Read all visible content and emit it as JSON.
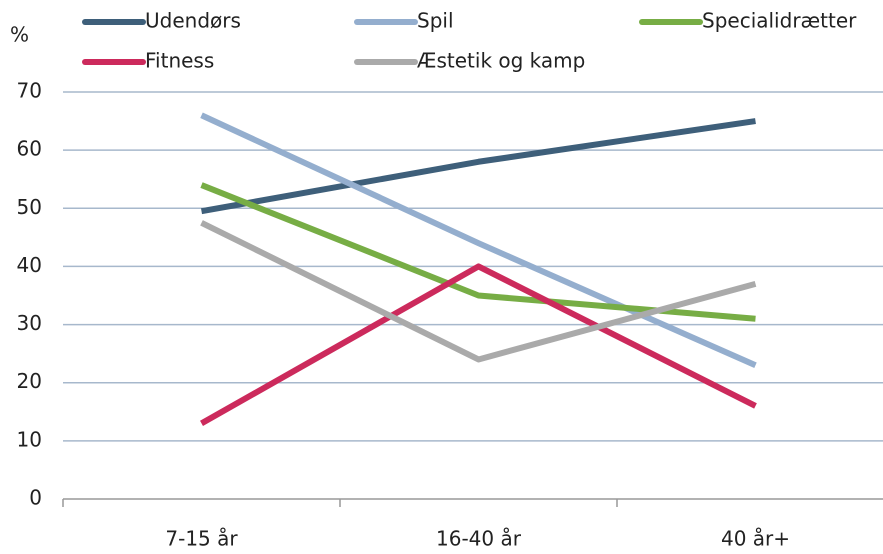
{
  "chart_data": {
    "type": "line",
    "y_label": "%",
    "categories": [
      "7-15 år",
      "16-40 år",
      "40 år+"
    ],
    "series": [
      {
        "name": "Udendørs",
        "color": "#3e5f7a",
        "values": [
          49.5,
          58,
          65
        ]
      },
      {
        "name": "Spil",
        "color": "#94aece",
        "values": [
          66,
          44,
          23
        ]
      },
      {
        "name": "Specialidrætter",
        "color": "#77ad45",
        "values": [
          54,
          35,
          31
        ]
      },
      {
        "name": "Fitness",
        "color": "#cc2a5c",
        "values": [
          13,
          40,
          16
        ]
      },
      {
        "name": "Æstetik og kamp",
        "color": "#aaaaaa",
        "values": [
          47.5,
          24,
          37
        ]
      }
    ],
    "ylim": [
      0,
      70
    ],
    "yticks": [
      0,
      10,
      20,
      30,
      40,
      50,
      60,
      70
    ],
    "grid": true
  }
}
